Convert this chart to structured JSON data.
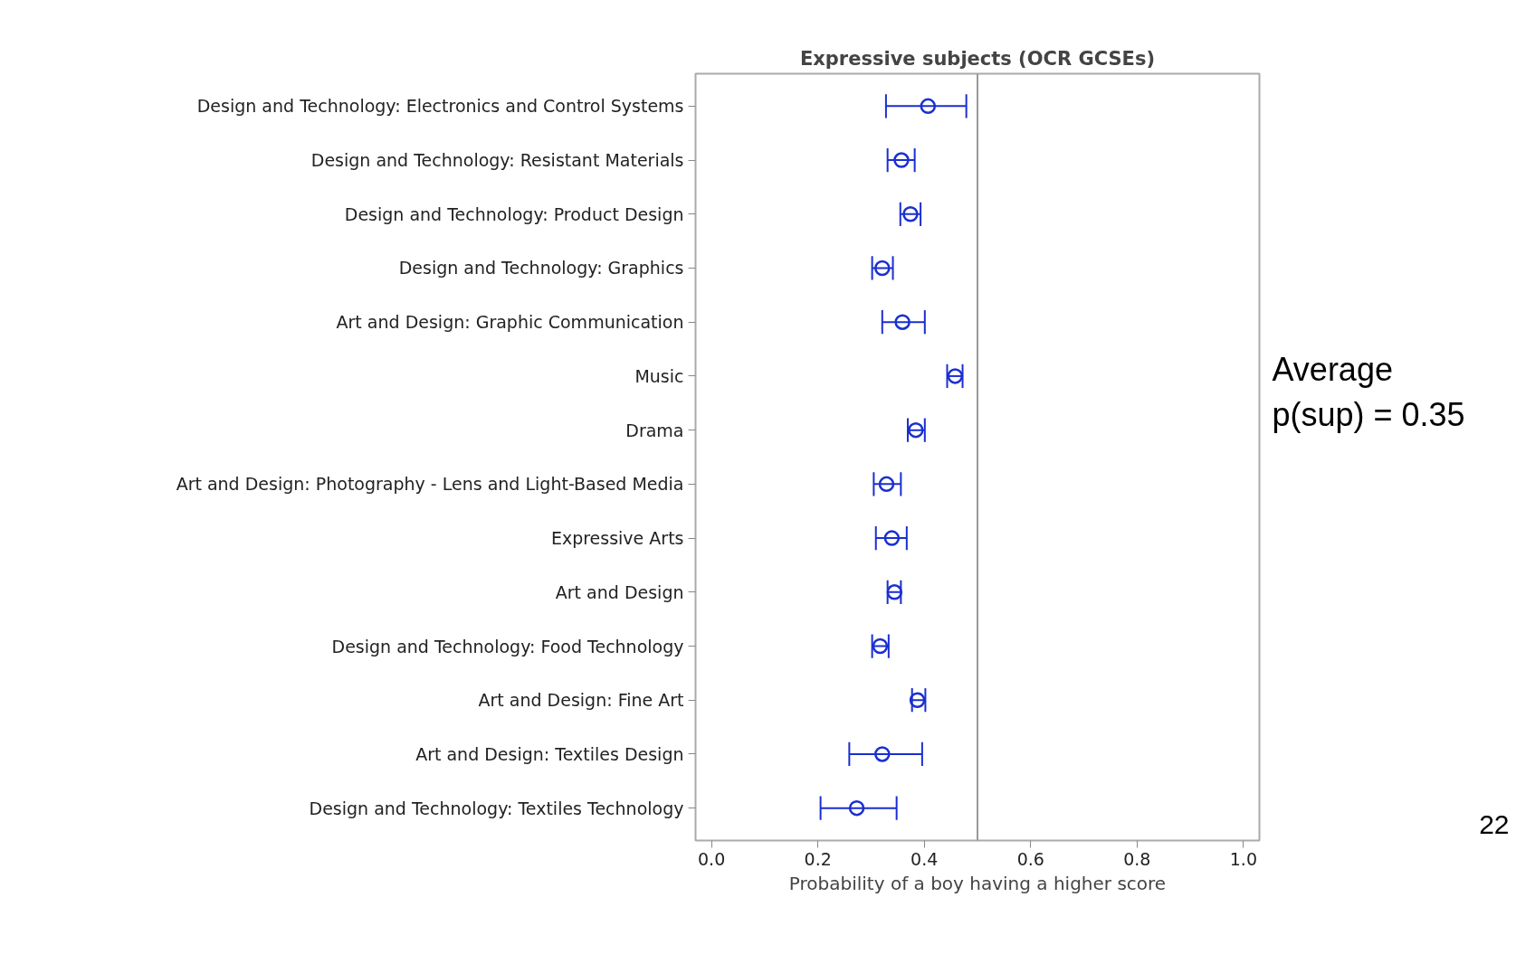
{
  "chart_data": {
    "type": "scatter",
    "title": "Expressive subjects (OCR GCSEs)",
    "xlabel": "Probability of a boy having a higher score",
    "categories": [
      "Design and Technology: Electronics and Control Systems",
      "Design and Technology: Resistant Materials",
      "Design and Technology: Product Design",
      "Design and Technology: Graphics",
      "Art and Design: Graphic Communication",
      "Music",
      "Drama",
      "Art and Design: Photography - Lens and Light-Based Media",
      "Expressive Arts",
      "Art and Design",
      "Design and Technology: Food Technology",
      "Art and Design: Fine Art",
      "Art and Design: Textiles Design",
      "Design and Technology: Textiles Technology"
    ],
    "series": [
      {
        "color": "#1a2fd0",
        "values": [
          0.407,
          0.357,
          0.374,
          0.321,
          0.359,
          0.458,
          0.384,
          0.329,
          0.339,
          0.344,
          0.317,
          0.387,
          0.321,
          0.273
        ],
        "errors": [
          [
            0.328,
            0.479
          ],
          [
            0.331,
            0.382
          ],
          [
            0.355,
            0.393
          ],
          [
            0.302,
            0.341
          ],
          [
            0.321,
            0.401
          ],
          [
            0.443,
            0.472
          ],
          [
            0.369,
            0.401
          ],
          [
            0.305,
            0.356
          ],
          [
            0.309,
            0.367
          ],
          [
            0.331,
            0.356
          ],
          [
            0.302,
            0.333
          ],
          [
            0.377,
            0.402
          ],
          [
            0.259,
            0.396
          ],
          [
            0.205,
            0.348
          ]
        ]
      }
    ],
    "xlim": [
      -0.03,
      1.03
    ],
    "xticks": [
      {
        "value": 0,
        "label": "0.0"
      },
      {
        "value": 0.2,
        "label": "0.2"
      },
      {
        "value": 0.4,
        "label": "0.4"
      },
      {
        "value": 0.6,
        "label": "0.6"
      },
      {
        "value": 0.8,
        "label": "0.8"
      },
      {
        "value": 1,
        "label": "1.0"
      }
    ],
    "ref_lines": [
      {
        "axis": "x",
        "value": 0.5,
        "color": "#999999"
      }
    ],
    "orientation": "horizontal",
    "marker": "circle",
    "grid": false,
    "annotations": [
      "Average p(sup) = 0.35",
      "22"
    ]
  }
}
